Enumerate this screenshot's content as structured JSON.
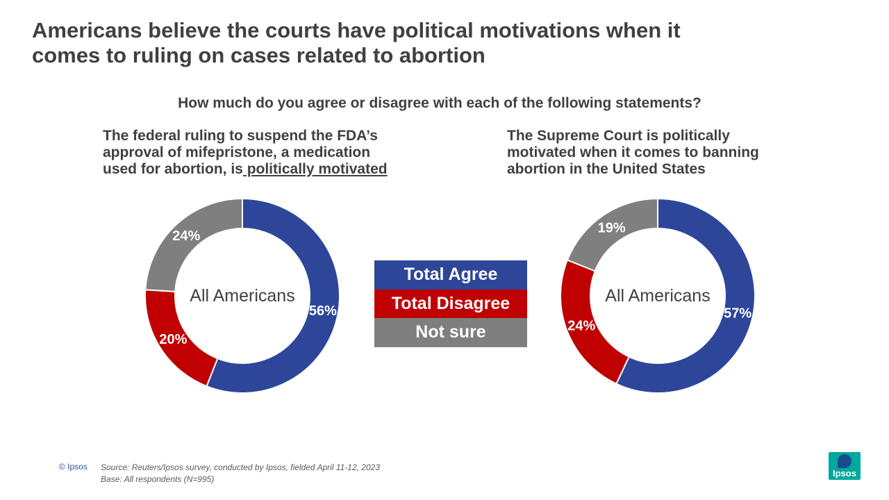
{
  "slide": {
    "title_line1": "Americans believe the courts have political motivations when it",
    "title_line2": "comes to ruling on cases related to abortion",
    "question": "How much do you agree or disagree with each of the following statements?"
  },
  "statements": {
    "left": {
      "line1": "The federal ruling to suspend the FDA’s",
      "line2": "approval of mifepristone, a medication",
      "line3_plain": "used for abortion, is",
      "line3_underlined": " politically motivated"
    },
    "right": {
      "line1": "The Supreme Court is politically",
      "line2": "motivated when it comes to banning",
      "line3": "abortion in the United States"
    }
  },
  "legend": [
    {
      "label": "Total Agree",
      "color": "#2e4699"
    },
    {
      "label": "Total Disagree",
      "color": "#c00000"
    },
    {
      "label": "Not sure",
      "color": "#7f7f7f"
    }
  ],
  "chart_data": [
    {
      "type": "pie",
      "variant": "donut",
      "center_label": "All Americans",
      "slices": [
        {
          "label": "Total Agree",
          "value": 56,
          "display": "56%",
          "color": "#2e4699"
        },
        {
          "label": "Total Disagree",
          "value": 20,
          "display": "20%",
          "color": "#c00000"
        },
        {
          "label": "Not sure",
          "value": 24,
          "display": "24%",
          "color": "#7f7f7f"
        }
      ]
    },
    {
      "type": "pie",
      "variant": "donut",
      "center_label": "All Americans",
      "slices": [
        {
          "label": "Total Agree",
          "value": 57,
          "display": "57%",
          "color": "#2e4699"
        },
        {
          "label": "Total Disagree",
          "value": 24,
          "display": "24%",
          "color": "#c00000"
        },
        {
          "label": "Not sure",
          "value": 19,
          "display": "19%",
          "color": "#7f7f7f"
        }
      ]
    }
  ],
  "footer": {
    "copyright": "© Ipsos",
    "source": "Source: Reuters/Ipsos survey, conducted by Ipsos, fielded April 11-12, 2023",
    "base": "Base: All respondents (N=995)",
    "logo_text": "Ipsos"
  }
}
